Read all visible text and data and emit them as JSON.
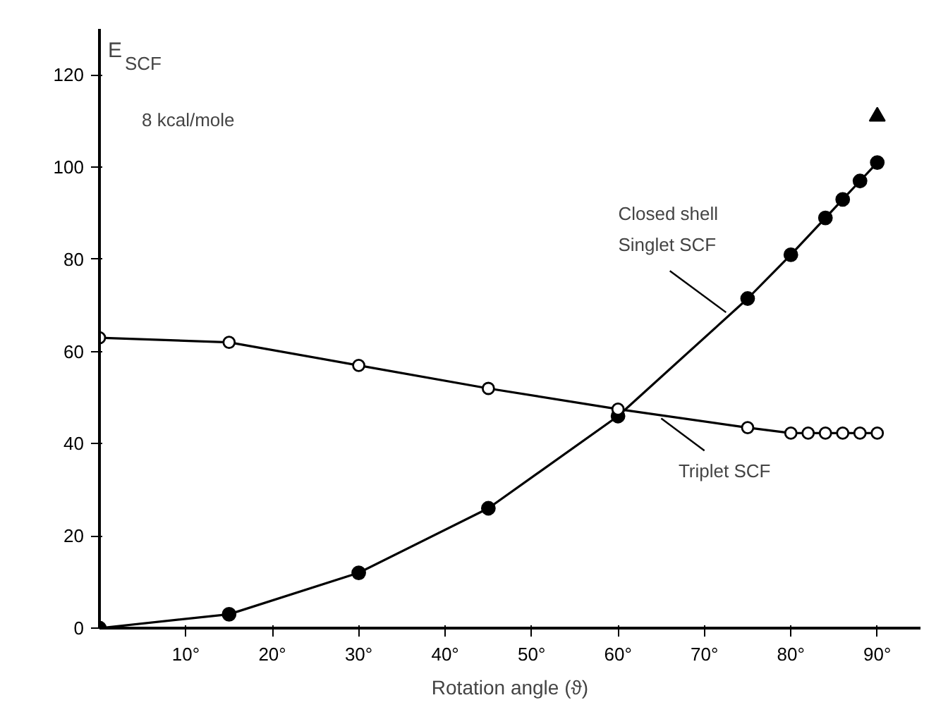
{
  "chart_data": {
    "type": "line",
    "xlabel": "Rotation angle (ϑ)",
    "ylabel": "E$_{SCF}$",
    "annotations": [
      "8 kcal/mole"
    ],
    "xlim": [
      0,
      95
    ],
    "ylim": [
      0,
      130
    ],
    "xticks": [
      {
        "value": 10,
        "label": "10°"
      },
      {
        "value": 20,
        "label": "20°"
      },
      {
        "value": 30,
        "label": "30°"
      },
      {
        "value": 40,
        "label": "40°"
      },
      {
        "value": 50,
        "label": "50°"
      },
      {
        "value": 60,
        "label": "60°"
      },
      {
        "value": 70,
        "label": "70°"
      },
      {
        "value": 80,
        "label": "80°"
      },
      {
        "value": 90,
        "label": "90°"
      }
    ],
    "yticks": [
      0,
      20,
      40,
      60,
      80,
      100,
      120
    ],
    "grid": false,
    "line_style": "solid",
    "series": [
      {
        "name": "Closed shell\nSinglet SCF",
        "color": "#000000",
        "marker": "circle",
        "x": [
          0,
          15,
          30,
          45,
          60,
          75,
          80,
          84,
          86,
          88,
          90
        ],
        "values": [
          0,
          3,
          12,
          26,
          46,
          71.5,
          81,
          89,
          93,
          97,
          101
        ]
      },
      {
        "name": "Triplet SCF",
        "color": "#000000",
        "marker": "circle",
        "x": [
          0,
          15,
          30,
          45,
          60,
          75,
          80,
          82,
          84,
          86,
          88,
          90
        ],
        "values": [
          63,
          62,
          57,
          52,
          47.5,
          43.5,
          42.3,
          42.3,
          42.3,
          42.3,
          42.3,
          42.3
        ]
      },
      {
        "type": "scatter",
        "color": "#000000",
        "marker": "triangle",
        "x": [
          90
        ],
        "values": [
          111
        ]
      }
    ]
  }
}
